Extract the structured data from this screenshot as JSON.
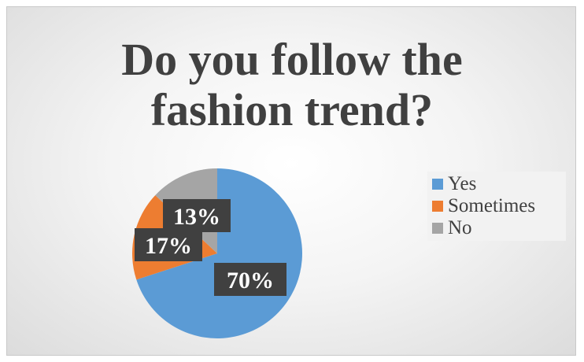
{
  "chart_data": {
    "type": "pie",
    "title_lines": [
      "Do you follow the",
      "fashion trend?"
    ],
    "categories": [
      "Yes",
      "Sometimes",
      "No"
    ],
    "values": [
      70,
      17,
      13
    ],
    "labels": [
      "70%",
      "17%",
      "13%"
    ],
    "colors": [
      "#5b9bd5",
      "#ed7d31",
      "#a5a5a5"
    ],
    "legend_position": "right"
  }
}
